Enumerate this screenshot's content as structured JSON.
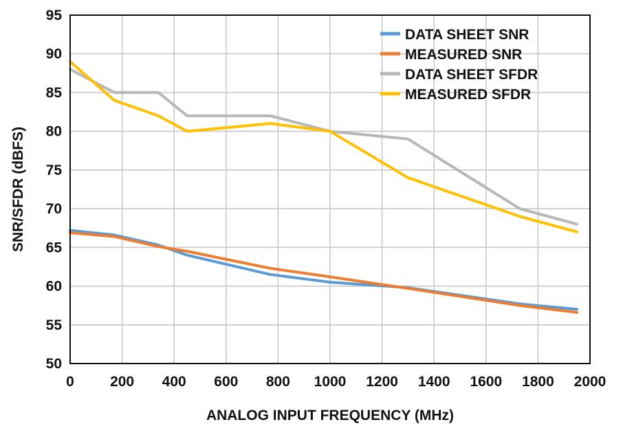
{
  "chart_data": {
    "type": "line",
    "xlabel": "ANALOG INPUT FREQUENCY (MHz)",
    "ylabel": "SNR/SFDR (dBFS)",
    "xlim": [
      0,
      2000
    ],
    "ylim": [
      50,
      95
    ],
    "xticks": [
      "0",
      "200",
      "400",
      "600",
      "800",
      "1000",
      "1200",
      "1400",
      "1600",
      "1800",
      "2000"
    ],
    "yticks": [
      "50",
      "55",
      "60",
      "65",
      "70",
      "75",
      "80",
      "85",
      "90",
      "95"
    ],
    "grid": true,
    "legend_position": "top-right",
    "series": [
      {
        "name": "DATA SHEET SNR",
        "color": "#5b9bd5",
        "x": [
          0,
          170,
          340,
          450,
          770,
          1000,
          1300,
          1730,
          1950
        ],
        "y": [
          67.2,
          66.6,
          65.3,
          64.0,
          61.5,
          60.5,
          59.8,
          57.7,
          57.0
        ]
      },
      {
        "name": "MEASURED SNR",
        "color": "#ed7d31",
        "x": [
          0,
          170,
          340,
          450,
          770,
          1000,
          1300,
          1730,
          1950
        ],
        "y": [
          66.9,
          66.4,
          65.1,
          64.5,
          62.3,
          61.2,
          59.7,
          57.5,
          56.6
        ]
      },
      {
        "name": "DATA SHEET SFDR",
        "color": "#b7b7b7",
        "x": [
          0,
          170,
          340,
          450,
          770,
          1000,
          1300,
          1730,
          1950
        ],
        "y": [
          88.0,
          85.0,
          85.0,
          82.0,
          82.0,
          80.0,
          79.0,
          70.0,
          68.0
        ]
      },
      {
        "name": "MEASURED SFDR",
        "color": "#ffc000",
        "x": [
          0,
          170,
          340,
          450,
          770,
          1000,
          1300,
          1730,
          1950
        ],
        "y": [
          89.0,
          84.0,
          82.0,
          80.0,
          81.0,
          80.0,
          74.0,
          69.0,
          67.0
        ]
      }
    ]
  }
}
